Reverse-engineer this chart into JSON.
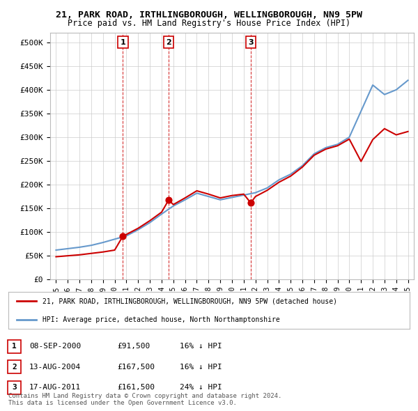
{
  "title1": "21, PARK ROAD, IRTHLINGBOROUGH, WELLINGBOROUGH, NN9 5PW",
  "title2": "Price paid vs. HM Land Registry's House Price Index (HPI)",
  "ylabel_ticks": [
    "£0",
    "£50K",
    "£100K",
    "£150K",
    "£200K",
    "£250K",
    "£300K",
    "£350K",
    "£400K",
    "£450K",
    "£500K"
  ],
  "ytick_values": [
    0,
    50000,
    100000,
    150000,
    200000,
    250000,
    300000,
    350000,
    400000,
    450000,
    500000
  ],
  "x_years": [
    1995,
    1996,
    1997,
    1998,
    1999,
    2000,
    2001,
    2002,
    2003,
    2004,
    2005,
    2006,
    2007,
    2008,
    2009,
    2010,
    2011,
    2012,
    2013,
    2014,
    2015,
    2016,
    2017,
    2018,
    2019,
    2020,
    2021,
    2022,
    2023,
    2024,
    2025
  ],
  "hpi_values": [
    62000,
    65000,
    68000,
    72000,
    78000,
    85000,
    92000,
    105000,
    120000,
    138000,
    155000,
    168000,
    182000,
    175000,
    168000,
    173000,
    178000,
    183000,
    193000,
    210000,
    222000,
    240000,
    265000,
    278000,
    285000,
    300000,
    355000,
    410000,
    390000,
    400000,
    420000
  ],
  "price_paid_years": [
    2000.7,
    2004.6,
    2011.6
  ],
  "price_paid_values": [
    91500,
    167500,
    161500
  ],
  "red_line_x": [
    1995,
    1996,
    1997,
    1998,
    1999,
    2000,
    2000.7,
    2001,
    2002,
    2003,
    2004,
    2004.6,
    2005,
    2006,
    2007,
    2008,
    2009,
    2010,
    2011,
    2011.6,
    2012,
    2013,
    2014,
    2015,
    2016,
    2017,
    2018,
    2019,
    2020,
    2021,
    2022,
    2023,
    2024,
    2025
  ],
  "red_line_values": [
    48000,
    50000,
    52000,
    55000,
    58000,
    62000,
    91500,
    95000,
    108000,
    124000,
    142000,
    167500,
    158000,
    172000,
    187000,
    180000,
    172000,
    177000,
    180000,
    161500,
    175000,
    188000,
    205000,
    218000,
    237000,
    262000,
    275000,
    282000,
    296000,
    249000,
    295000,
    318000,
    305000,
    312000
  ],
  "annotation_years": [
    2000.7,
    2004.6,
    2011.6
  ],
  "annotation_labels": [
    "1",
    "2",
    "3"
  ],
  "dashed_line_years": [
    2000.7,
    2004.6,
    2011.6
  ],
  "legend_red": "21, PARK ROAD, IRTHLINGBOROUGH, WELLINGBOROUGH, NN9 5PW (detached house)",
  "legend_blue": "HPI: Average price, detached house, North Northamptonshire",
  "table_rows": [
    {
      "num": "1",
      "date": "08-SEP-2000",
      "price": "£91,500",
      "hpi": "16% ↓ HPI"
    },
    {
      "num": "2",
      "date": "13-AUG-2004",
      "price": "£167,500",
      "hpi": "16% ↓ HPI"
    },
    {
      "num": "3",
      "date": "17-AUG-2011",
      "price": "£161,500",
      "hpi": "24% ↓ HPI"
    }
  ],
  "footer": "Contains HM Land Registry data © Crown copyright and database right 2024.\nThis data is licensed under the Open Government Licence v3.0.",
  "red_color": "#cc0000",
  "blue_color": "#6699cc",
  "bg_color": "#ffffff",
  "grid_color": "#cccccc",
  "border_color": "#bbbbbb"
}
